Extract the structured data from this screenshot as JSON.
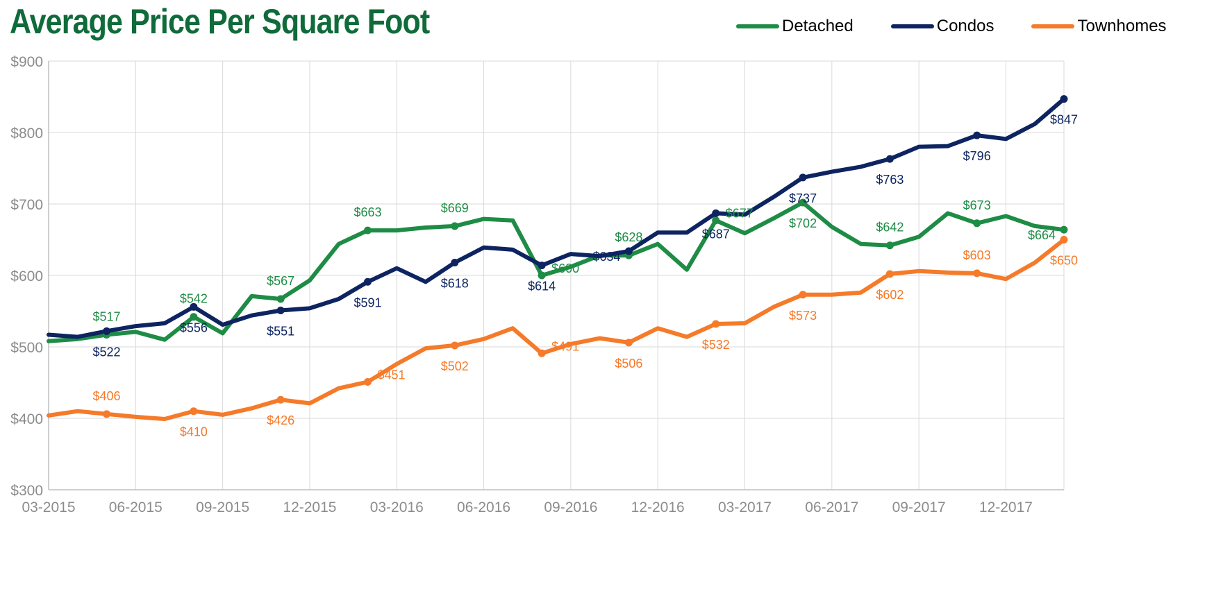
{
  "chart_data": {
    "type": "line",
    "title": "Average Price Per Square Foot",
    "xlabel": "",
    "ylabel": "",
    "ylim": [
      300,
      900
    ],
    "y_ticks": [
      "$300",
      "$400",
      "$500",
      "$600",
      "$700",
      "$800",
      "$900"
    ],
    "y_tick_values": [
      300,
      400,
      500,
      600,
      700,
      800,
      900
    ],
    "x": [
      "03-2015",
      "04-2015",
      "05-2015",
      "06-2015",
      "07-2015",
      "08-2015",
      "09-2015",
      "10-2015",
      "11-2015",
      "12-2015",
      "01-2016",
      "02-2016",
      "03-2016",
      "04-2016",
      "05-2016",
      "06-2016",
      "07-2016",
      "08-2016",
      "09-2016",
      "10-2016",
      "11-2016",
      "12-2016",
      "01-2017",
      "02-2017",
      "03-2017",
      "04-2017",
      "05-2017",
      "06-2017",
      "07-2017",
      "08-2017",
      "09-2017",
      "10-2017",
      "11-2017",
      "12-2017",
      "01-2018",
      "02-2018"
    ],
    "x_tick_labels": [
      "03-2015",
      "06-2015",
      "09-2015",
      "12-2015",
      "03-2016",
      "06-2016",
      "09-2016",
      "12-2016",
      "03-2017",
      "06-2017",
      "09-2017",
      "12-2017"
    ],
    "x_tick_indices": [
      0,
      3,
      6,
      9,
      12,
      15,
      18,
      21,
      24,
      27,
      30,
      33
    ],
    "grid": true,
    "legend_position": "top-right",
    "series": [
      {
        "name": "Detached",
        "color": "#1e8c45",
        "values": [
          508,
          511,
          517,
          521,
          510,
          542,
          519,
          571,
          567,
          593,
          644,
          663,
          663,
          667,
          669,
          679,
          677,
          600,
          612,
          628,
          628,
          644,
          608,
          677,
          659,
          680,
          702,
          668,
          644,
          642,
          654,
          687,
          673,
          683,
          669,
          664
        ],
        "markers": [
          2,
          5,
          8,
          11,
          14,
          17,
          20,
          23,
          26,
          29,
          32,
          35
        ],
        "labels": [
          {
            "i": 2,
            "text": "$517",
            "pos": "above"
          },
          {
            "i": 5,
            "text": "$542",
            "pos": "above"
          },
          {
            "i": 8,
            "text": "$567",
            "pos": "above"
          },
          {
            "i": 11,
            "text": "$663",
            "pos": "above"
          },
          {
            "i": 14,
            "text": "$669",
            "pos": "above"
          },
          {
            "i": 17,
            "text": "$600",
            "pos": "right"
          },
          {
            "i": 20,
            "text": "$628",
            "pos": "above"
          },
          {
            "i": 23,
            "text": "$677",
            "pos": "right"
          },
          {
            "i": 26,
            "text": "$702",
            "pos": "below"
          },
          {
            "i": 29,
            "text": "$642",
            "pos": "above"
          },
          {
            "i": 32,
            "text": "$673",
            "pos": "above"
          },
          {
            "i": 35,
            "text": "$664",
            "pos": "left"
          }
        ]
      },
      {
        "name": "Condos",
        "color": "#0d2461",
        "values": [
          517,
          514,
          522,
          529,
          533,
          556,
          531,
          544,
          551,
          554,
          567,
          591,
          610,
          591,
          618,
          639,
          636,
          614,
          630,
          627,
          634,
          660,
          660,
          687,
          685,
          710,
          737,
          745,
          752,
          763,
          780,
          781,
          796,
          791,
          812,
          847
        ],
        "markers": [
          2,
          5,
          8,
          11,
          14,
          17,
          20,
          23,
          26,
          29,
          32,
          35
        ],
        "labels": [
          {
            "i": 2,
            "text": "$522",
            "pos": "below"
          },
          {
            "i": 5,
            "text": "$556",
            "pos": "below"
          },
          {
            "i": 8,
            "text": "$551",
            "pos": "below"
          },
          {
            "i": 11,
            "text": "$591",
            "pos": "below"
          },
          {
            "i": 14,
            "text": "$618",
            "pos": "below"
          },
          {
            "i": 17,
            "text": "$614",
            "pos": "below"
          },
          {
            "i": 20,
            "text": "$634",
            "pos": "left"
          },
          {
            "i": 23,
            "text": "$687",
            "pos": "below"
          },
          {
            "i": 26,
            "text": "$737",
            "pos": "below"
          },
          {
            "i": 29,
            "text": "$763",
            "pos": "below"
          },
          {
            "i": 32,
            "text": "$796",
            "pos": "below"
          },
          {
            "i": 35,
            "text": "$847",
            "pos": "below"
          }
        ]
      },
      {
        "name": "Townhomes",
        "color": "#f57a29",
        "values": [
          404,
          410,
          406,
          402,
          399,
          410,
          405,
          414,
          426,
          421,
          442,
          451,
          476,
          498,
          502,
          511,
          526,
          491,
          504,
          512,
          506,
          526,
          514,
          532,
          533,
          556,
          573,
          573,
          576,
          602,
          606,
          604,
          603,
          595,
          618,
          650
        ],
        "markers": [
          2,
          5,
          8,
          11,
          14,
          17,
          20,
          23,
          26,
          29,
          32,
          35
        ],
        "labels": [
          {
            "i": 2,
            "text": "$406",
            "pos": "above"
          },
          {
            "i": 5,
            "text": "$410",
            "pos": "below"
          },
          {
            "i": 8,
            "text": "$426",
            "pos": "below"
          },
          {
            "i": 11,
            "text": "$451",
            "pos": "right"
          },
          {
            "i": 14,
            "text": "$502",
            "pos": "below"
          },
          {
            "i": 17,
            "text": "$491",
            "pos": "right"
          },
          {
            "i": 20,
            "text": "$506",
            "pos": "below"
          },
          {
            "i": 23,
            "text": "$532",
            "pos": "below"
          },
          {
            "i": 26,
            "text": "$573",
            "pos": "below"
          },
          {
            "i": 29,
            "text": "$602",
            "pos": "below"
          },
          {
            "i": 32,
            "text": "$603",
            "pos": "above"
          },
          {
            "i": 35,
            "text": "$650",
            "pos": "below"
          }
        ]
      }
    ]
  }
}
